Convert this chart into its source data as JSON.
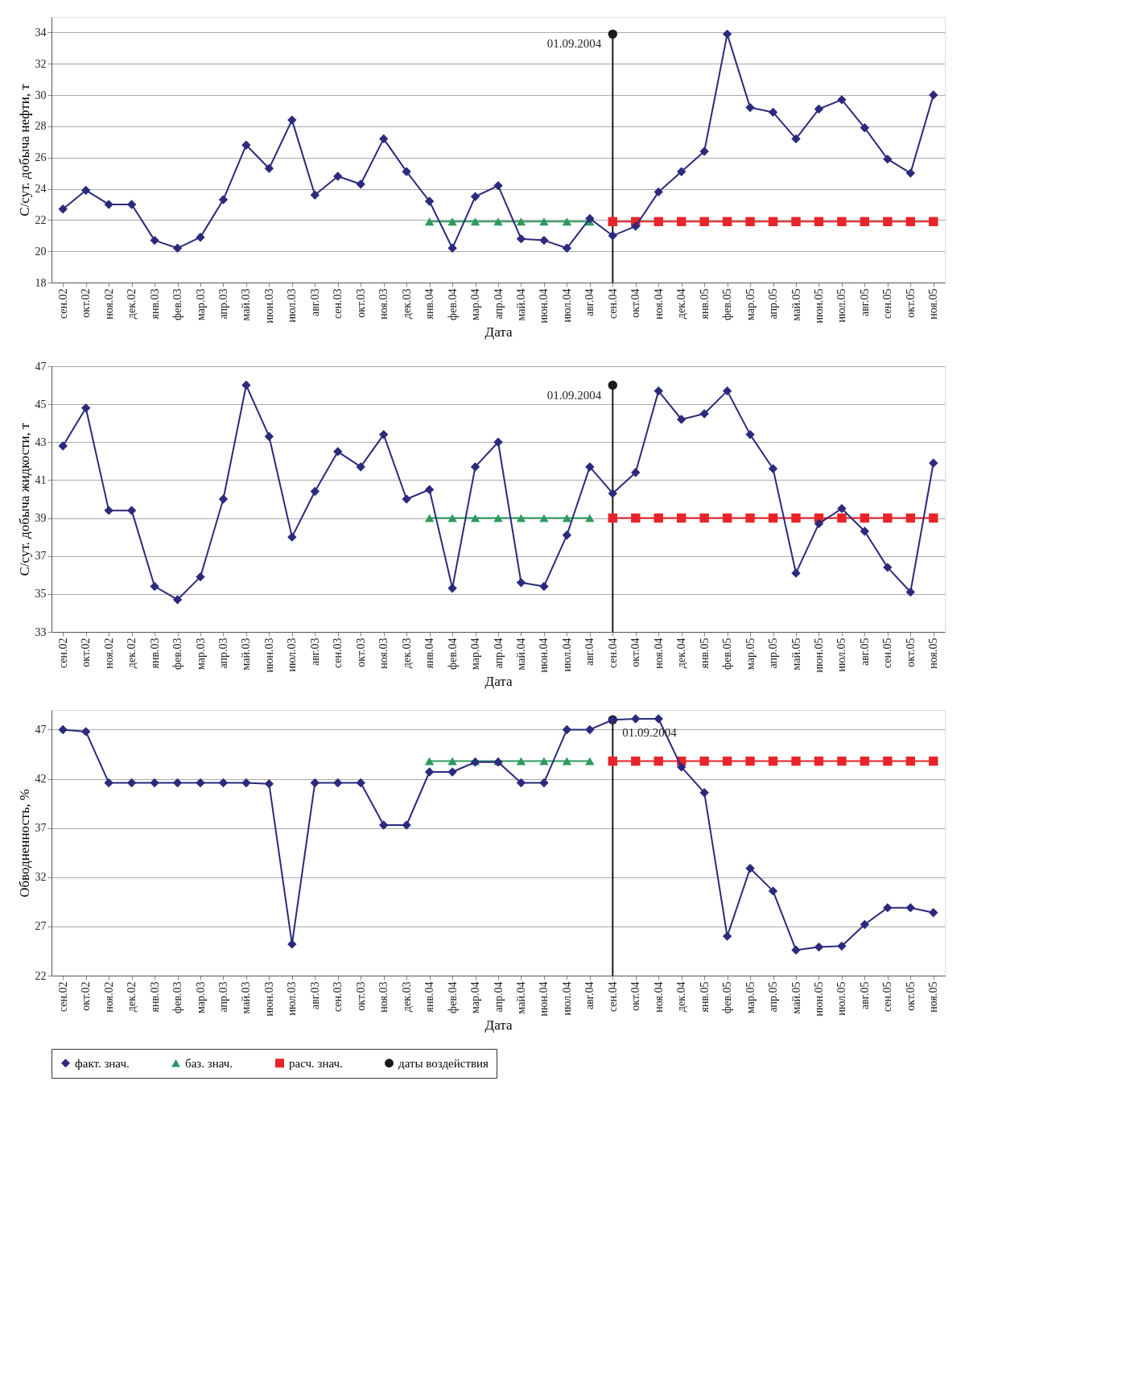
{
  "chart_data": [
    {
      "type": "line",
      "xlabel": "Дата",
      "ylabel": "С/сут. добыча нефти, т",
      "ylim": [
        18,
        35
      ],
      "yticks": [
        18,
        20,
        22,
        24,
        26,
        28,
        30,
        32,
        34
      ],
      "grid": "y",
      "legend": false,
      "categories": [
        "сен.02",
        "окт.02",
        "ноя.02",
        "дек.02",
        "янв.03",
        "фев.03",
        "мар.03",
        "апр.03",
        "май.03",
        "июн.03",
        "июл.03",
        "авг.03",
        "сен.03",
        "окт.03",
        "ноя.03",
        "дек.03",
        "янв.04",
        "фев.04",
        "мар.04",
        "апр.04",
        "май.04",
        "июн.04",
        "июл.04",
        "авг.04",
        "сен.04",
        "окт.04",
        "ноя.04",
        "дек.04",
        "янв.05",
        "фев.05",
        "мар.05",
        "апр.05",
        "май.05",
        "июн.05",
        "июл.05",
        "авг.05",
        "сен.05",
        "окт.05",
        "ноя.05"
      ],
      "series": [
        {
          "color": "#2b2a7c",
          "marker": "diamond",
          "values": [
            22.7,
            23.9,
            23.0,
            23.0,
            20.7,
            20.2,
            20.9,
            23.3,
            26.8,
            25.3,
            28.4,
            23.6,
            24.8,
            24.3,
            27.2,
            25.1,
            23.2,
            20.2,
            23.5,
            24.2,
            20.8,
            20.7,
            20.2,
            22.1,
            21.0,
            21.6,
            23.8,
            25.1,
            26.4,
            33.9,
            29.2,
            28.9,
            27.2,
            29.1,
            29.7,
            27.9,
            25.9,
            25.0,
            30.0
          ]
        },
        {
          "color": "#2e9a5e",
          "marker": "triangle",
          "values": [
            null,
            null,
            null,
            null,
            null,
            null,
            null,
            null,
            null,
            null,
            null,
            null,
            null,
            null,
            null,
            null,
            21.9,
            21.9,
            21.9,
            21.9,
            21.9,
            21.9,
            21.9,
            21.9,
            null,
            null,
            null,
            null,
            null,
            null,
            null,
            null,
            null,
            null,
            null,
            null,
            null,
            null,
            null
          ]
        },
        {
          "color": "#e8242a",
          "marker": "square",
          "values": [
            null,
            null,
            null,
            null,
            null,
            null,
            null,
            null,
            null,
            null,
            null,
            null,
            null,
            null,
            null,
            null,
            null,
            null,
            null,
            null,
            null,
            null,
            null,
            null,
            21.9,
            21.9,
            21.9,
            21.9,
            21.9,
            21.9,
            21.9,
            21.9,
            21.9,
            21.9,
            21.9,
            21.9,
            21.9,
            21.9,
            21.9
          ]
        },
        {
          "type": "lollipop",
          "color": "#1a1a1a",
          "marker": "circle",
          "values": [
            null,
            null,
            null,
            null,
            null,
            null,
            null,
            null,
            null,
            null,
            null,
            null,
            null,
            null,
            null,
            null,
            null,
            null,
            null,
            null,
            null,
            null,
            null,
            null,
            33.9,
            null,
            null,
            null,
            null,
            null,
            null,
            null,
            null,
            null,
            null,
            null,
            null,
            null,
            null
          ]
        }
      ],
      "annotations": [
        {
          "text": "01.09.2004",
          "x": "сен.04",
          "y": 33.9
        }
      ]
    },
    {
      "type": "line",
      "xlabel": "Дата",
      "ylabel": "С/сут. добыча жидкости, т",
      "ylim": [
        33,
        47
      ],
      "yticks": [
        33,
        35,
        37,
        39,
        41,
        43,
        45,
        47
      ],
      "grid": "y",
      "legend": false,
      "categories": [
        "сен.02",
        "окт.02",
        "ноя.02",
        "дек.02",
        "янв.03",
        "фев.03",
        "мар.03",
        "апр.03",
        "май.03",
        "июн.03",
        "июл.03",
        "авг.03",
        "сен.03",
        "окт.03",
        "ноя.03",
        "дек.03",
        "янв.04",
        "фев.04",
        "мар.04",
        "апр.04",
        "май.04",
        "июн.04",
        "июл.04",
        "авг.04",
        "сен.04",
        "окт.04",
        "ноя.04",
        "дек.04",
        "янв.05",
        "фев.05",
        "мар.05",
        "апр.05",
        "май.05",
        "июн.05",
        "июл.05",
        "авг.05",
        "сен.05",
        "окт.05",
        "ноя.05"
      ],
      "series": [
        {
          "color": "#2b2a7c",
          "marker": "diamond",
          "values": [
            42.8,
            44.8,
            39.4,
            39.4,
            35.4,
            34.7,
            35.9,
            40.0,
            46.0,
            43.3,
            38.0,
            40.4,
            42.5,
            41.7,
            43.4,
            40.0,
            40.5,
            35.3,
            41.7,
            43.0,
            35.6,
            35.4,
            38.1,
            41.7,
            40.3,
            41.4,
            45.7,
            44.2,
            44.5,
            45.7,
            43.4,
            41.6,
            36.1,
            38.7,
            39.5,
            38.3,
            36.4,
            35.1,
            41.9
          ]
        },
        {
          "color": "#2e9a5e",
          "marker": "triangle",
          "values": [
            null,
            null,
            null,
            null,
            null,
            null,
            null,
            null,
            null,
            null,
            null,
            null,
            null,
            null,
            null,
            null,
            39,
            39,
            39,
            39,
            39,
            39,
            39,
            39,
            null,
            null,
            null,
            null,
            null,
            null,
            null,
            null,
            null,
            null,
            null,
            null,
            null,
            null,
            null
          ]
        },
        {
          "color": "#e8242a",
          "marker": "square",
          "values": [
            null,
            null,
            null,
            null,
            null,
            null,
            null,
            null,
            null,
            null,
            null,
            null,
            null,
            null,
            null,
            null,
            null,
            null,
            null,
            null,
            null,
            null,
            null,
            null,
            39,
            39,
            39,
            39,
            39,
            39,
            39,
            39,
            39,
            39,
            39,
            39,
            39,
            39,
            39
          ]
        },
        {
          "type": "lollipop",
          "color": "#1a1a1a",
          "marker": "circle",
          "values": [
            null,
            null,
            null,
            null,
            null,
            null,
            null,
            null,
            null,
            null,
            null,
            null,
            null,
            null,
            null,
            null,
            null,
            null,
            null,
            null,
            null,
            null,
            null,
            null,
            46.0,
            null,
            null,
            null,
            null,
            null,
            null,
            null,
            null,
            null,
            null,
            null,
            null,
            null,
            null
          ]
        }
      ],
      "annotations": [
        {
          "text": "01.09.2004",
          "x": "сен.04",
          "y": 46.0
        }
      ]
    },
    {
      "type": "line",
      "xlabel": "Дата",
      "ylabel": "Обводненность, %",
      "ylim": [
        22,
        49
      ],
      "yticks": [
        22,
        27,
        32,
        37,
        42,
        47
      ],
      "grid": "y",
      "legend": "bottom",
      "categories": [
        "сен.02",
        "окт.02",
        "ноя.02",
        "дек.02",
        "янв.03",
        "фев.03",
        "мар.03",
        "апр.03",
        "май.03",
        "июн.03",
        "июл.03",
        "авг.03",
        "сен.03",
        "окт.03",
        "ноя.03",
        "дек.03",
        "янв.04",
        "фев.04",
        "мар.04",
        "апр.04",
        "май.04",
        "июн.04",
        "июл.04",
        "авг.04",
        "сен.04",
        "окт.04",
        "ноя.04",
        "дек.04",
        "янв.05",
        "фев.05",
        "мар.05",
        "апр.05",
        "май.05",
        "июн.05",
        "июл.05",
        "авг.05",
        "сен.05",
        "окт.05",
        "ноя.05"
      ],
      "series": [
        {
          "name": "факт. знач.",
          "color": "#2b2a7c",
          "marker": "diamond",
          "values": [
            47.0,
            46.8,
            41.6,
            41.6,
            41.6,
            41.6,
            41.6,
            41.6,
            41.6,
            41.5,
            25.2,
            41.6,
            41.6,
            41.6,
            37.3,
            37.3,
            42.7,
            42.7,
            43.7,
            43.7,
            41.6,
            41.6,
            47.0,
            47.0,
            48.0,
            48.1,
            48.1,
            43.2,
            40.6,
            26.0,
            32.9,
            30.6,
            24.6,
            24.9,
            25.0,
            27.2,
            28.9,
            28.9,
            28.4
          ]
        },
        {
          "name": "баз. знач.",
          "color": "#2e9a5e",
          "marker": "triangle",
          "values": [
            null,
            null,
            null,
            null,
            null,
            null,
            null,
            null,
            null,
            null,
            null,
            null,
            null,
            null,
            null,
            null,
            43.8,
            43.8,
            43.8,
            43.8,
            43.8,
            43.8,
            43.8,
            43.8,
            null,
            null,
            null,
            null,
            null,
            null,
            null,
            null,
            null,
            null,
            null,
            null,
            null,
            null,
            null
          ]
        },
        {
          "name": "расч. знач.",
          "color": "#e8242a",
          "marker": "square",
          "values": [
            null,
            null,
            null,
            null,
            null,
            null,
            null,
            null,
            null,
            null,
            null,
            null,
            null,
            null,
            null,
            null,
            null,
            null,
            null,
            null,
            null,
            null,
            null,
            null,
            43.8,
            43.8,
            43.8,
            43.8,
            43.8,
            43.8,
            43.8,
            43.8,
            43.8,
            43.8,
            43.8,
            43.8,
            43.8,
            43.8,
            43.8
          ]
        },
        {
          "name": "даты воздействия",
          "type": "lollipop",
          "color": "#1a1a1a",
          "marker": "circle",
          "values": [
            null,
            null,
            null,
            null,
            null,
            null,
            null,
            null,
            null,
            null,
            null,
            null,
            null,
            null,
            null,
            null,
            null,
            null,
            null,
            null,
            null,
            null,
            null,
            null,
            48.0,
            null,
            null,
            null,
            null,
            null,
            null,
            null,
            null,
            null,
            null,
            null,
            null,
            null,
            null
          ]
        }
      ],
      "annotations": [
        {
          "text": "01.09.2004",
          "x": "сен.04",
          "y": 48.0
        }
      ]
    }
  ]
}
